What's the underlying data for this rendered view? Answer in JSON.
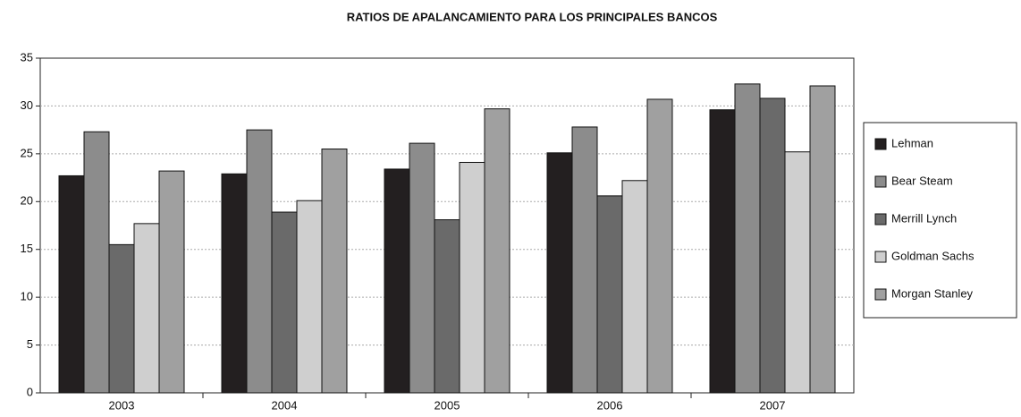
{
  "chart_data": {
    "type": "bar",
    "title": "RATIOS DE APALANCAMIENTO PARA LOS PRINCIPALES BANCOS",
    "categories": [
      "2003",
      "2004",
      "2005",
      "2006",
      "2007"
    ],
    "series": [
      {
        "name": "Lehman",
        "color": "#231f20",
        "values": [
          22.7,
          22.9,
          23.4,
          25.1,
          29.6
        ]
      },
      {
        "name": "Bear Steam",
        "color": "#8c8c8c",
        "values": [
          27.3,
          27.5,
          26.1,
          27.8,
          32.3
        ]
      },
      {
        "name": "Merrill Lynch",
        "color": "#6a6a6a",
        "values": [
          15.5,
          18.9,
          18.1,
          20.6,
          30.8
        ]
      },
      {
        "name": "Goldman Sachs",
        "color": "#cfcfcf",
        "values": [
          17.7,
          20.1,
          24.1,
          22.2,
          25.2
        ]
      },
      {
        "name": "Morgan Stanley",
        "color": "#a0a0a0",
        "values": [
          23.2,
          25.5,
          29.7,
          30.7,
          32.1
        ]
      }
    ],
    "ylim": [
      0,
      35
    ],
    "yticks": [
      0,
      5,
      10,
      15,
      20,
      25,
      30,
      35
    ],
    "grid": true,
    "legend": "right"
  }
}
